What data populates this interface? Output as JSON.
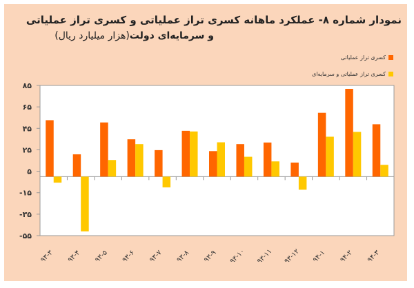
{
  "chart_data": {
    "type": "bar",
    "title": "نمودار شماره ۸- عملکرد ماهانه کسری تراز عملیاتی و کسری تراز عملیاتی",
    "subtitle_bold": "و سرمایه‌ای دولت",
    "subtitle_unit": "(هزار میلیارد ریال)",
    "categories": [
      "۹۳-۳",
      "۹۳-۴",
      "۹۳-۵",
      "۹۳-۶",
      "۹۳-۷",
      "۹۳-۸",
      "۹۳-۹",
      "۹۳-۱۰",
      "۹۳-۱۱",
      "۹۳-۱۲",
      "۹۴-۱",
      "۹۴-۲",
      "۹۴-۳"
    ],
    "series": [
      {
        "name": "کسری تراز عملیاتی",
        "color": "#ff6600",
        "values": [
          52.6,
          20.8,
          50.5,
          34.8,
          24.7,
          42.7,
          23.8,
          30.3,
          31.8,
          13.1,
          59.5,
          81.8,
          48.8
        ]
      },
      {
        "name": "کسری تراز عملیاتی و سرمایه‌ای",
        "color": "#ffc800",
        "values": [
          -5.6,
          -51,
          15.5,
          30.3,
          -10,
          42.1,
          32,
          18.5,
          14.2,
          -12.2,
          37.2,
          41.7,
          11
        ]
      }
    ],
    "yticks": [
      85,
      65,
      45,
      25,
      5,
      -15,
      -35,
      -55
    ],
    "ytick_labels": [
      "۸۵",
      "۶۵",
      "۴۵",
      "۲۵",
      "۵",
      "-۱۵",
      "-۳۵",
      "-۵۵"
    ],
    "ylim": [
      -55,
      85
    ],
    "xlabel": "",
    "ylabel": "",
    "grid": false,
    "legend_position": "top-right"
  }
}
